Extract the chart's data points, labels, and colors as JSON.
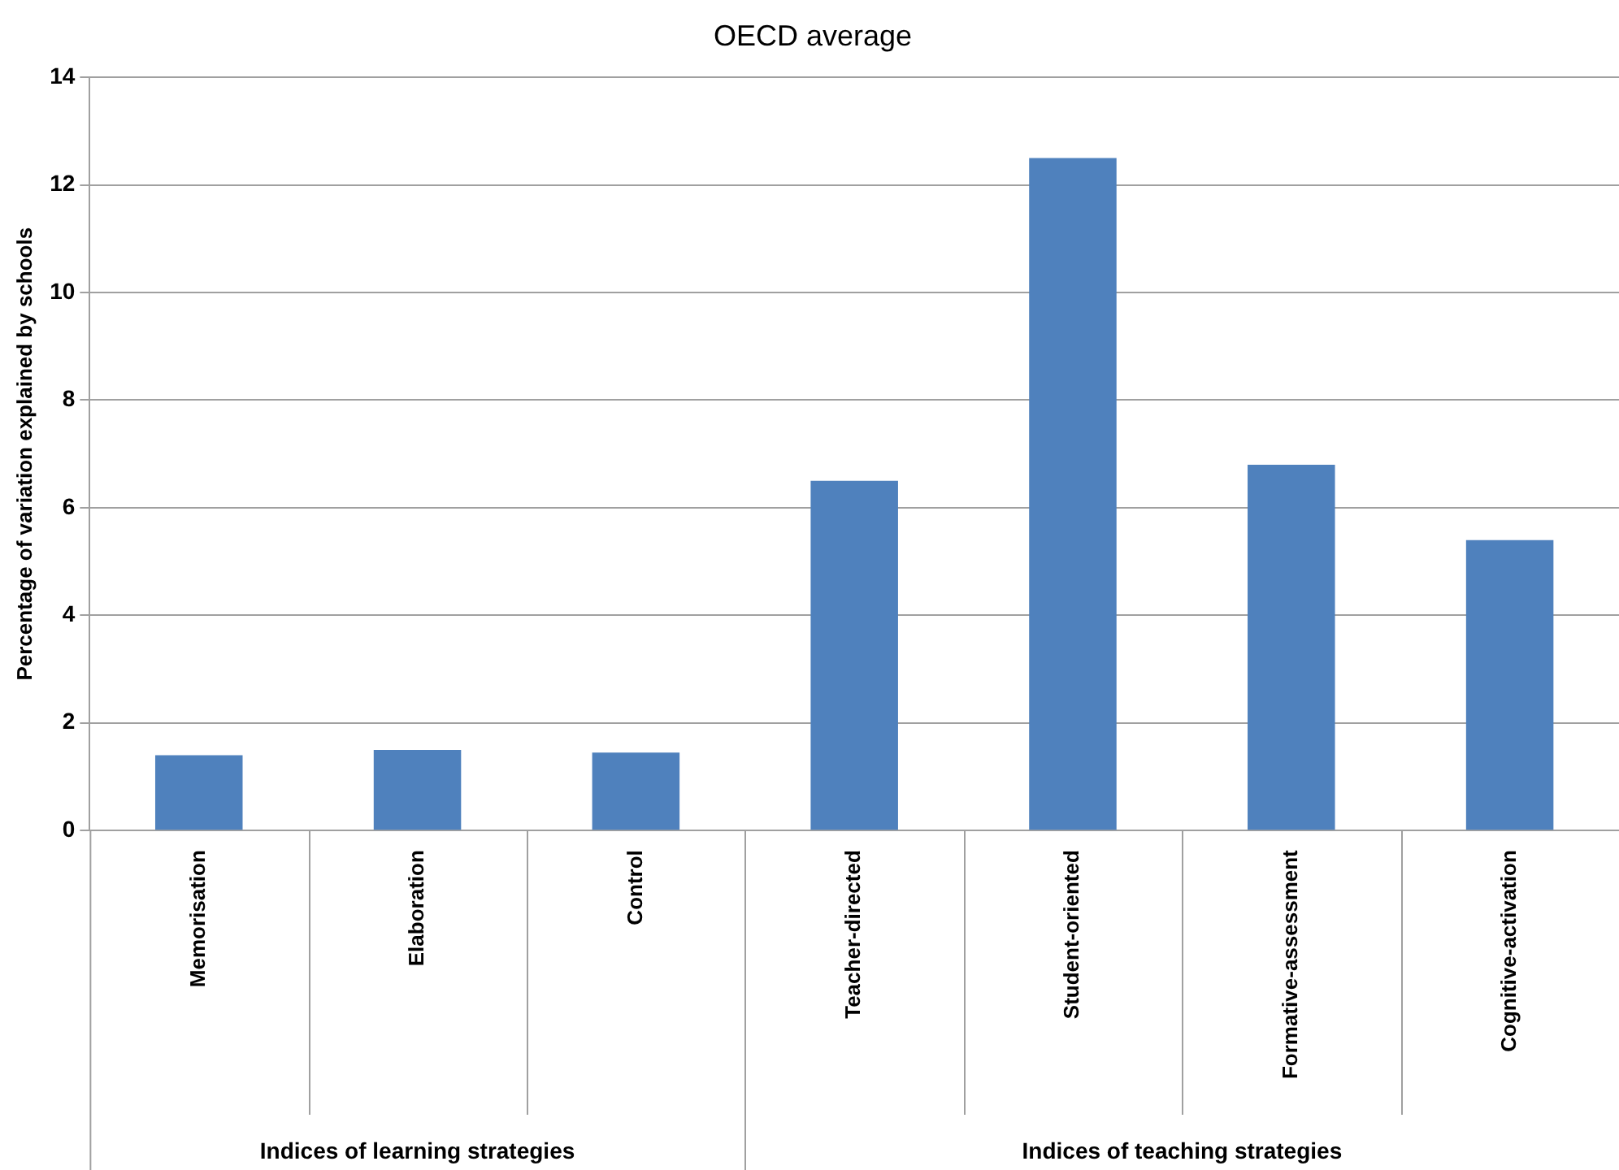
{
  "chart_data": {
    "type": "bar",
    "title": "OECD average",
    "ylabel": "Percentage of variation explained by schools",
    "categories": [
      "Memorisation",
      "Elaboration",
      "Control",
      "Teacher-directed",
      "Student-oriented",
      "Formative-assessment",
      "Cognitive-activation"
    ],
    "values": [
      1.4,
      1.5,
      1.45,
      6.5,
      12.5,
      6.8,
      5.4
    ],
    "color": "#4f81bd",
    "ylim": [
      0,
      14
    ],
    "yticks": [
      0,
      2,
      4,
      6,
      8,
      10,
      12,
      14
    ],
    "grid": "y",
    "legend": false,
    "annotations": [
      "Indices of learning strategies",
      "Indices of teaching strategies"
    ]
  }
}
